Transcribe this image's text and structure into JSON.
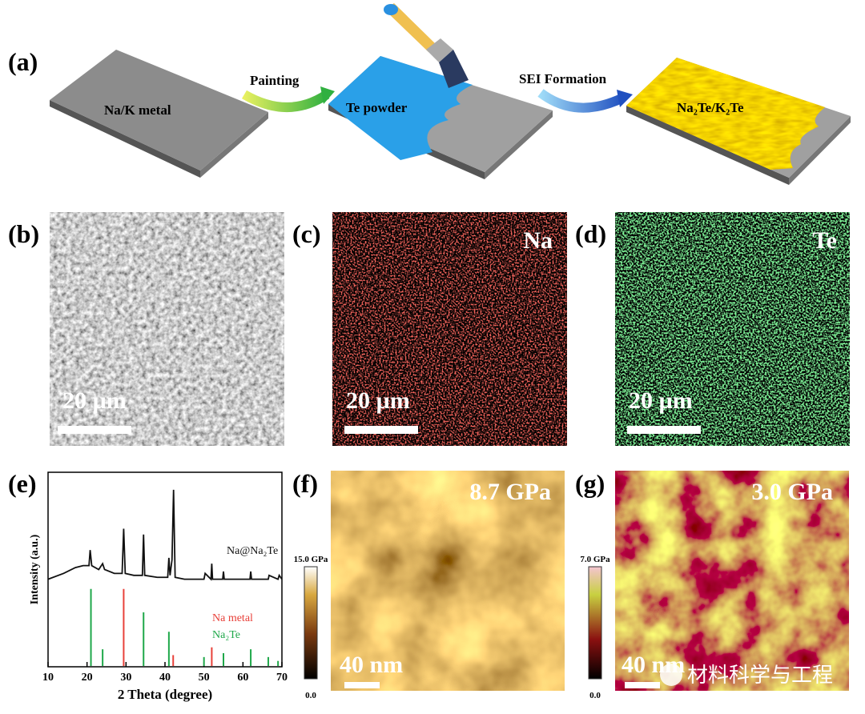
{
  "panel_labels": [
    "(a)",
    "(b)",
    "(c)",
    "(d)",
    "(e)",
    "(f)",
    "(g)"
  ],
  "a": {
    "substrate": "Na/K metal",
    "step1": "Painting",
    "coating": "Te powder",
    "step2": "SEI  Formation",
    "product": "Na₂Te/K₂Te"
  },
  "b": {
    "scale": "20 µm"
  },
  "c": {
    "element": "Na",
    "scale": "20 µm"
  },
  "d": {
    "element": "Te",
    "scale": "20 µm"
  },
  "e": {
    "chart_data": {
      "type": "line",
      "xlabel": "2 Theta (degree)",
      "ylabel": "Intensity (a.u.)",
      "xlim": [
        10,
        70
      ],
      "xticks": [
        10,
        20,
        30,
        40,
        50,
        60,
        70
      ],
      "ylim": [
        0,
        100
      ],
      "series": [
        {
          "name": "Na@Na₂Te",
          "color": "#111111",
          "type": "line",
          "x": [
            10,
            14,
            17,
            19,
            20.5,
            20.8,
            21.2,
            23,
            24,
            24.5,
            27,
            29,
            29.4,
            29.8,
            32,
            34.2,
            34.5,
            34.8,
            38,
            40.7,
            41,
            41.3,
            41.8,
            42.2,
            42.6,
            45,
            50,
            50.3,
            51.8,
            52,
            52.2,
            54.8,
            55,
            55.2,
            58,
            61.8,
            62,
            62.2,
            66.5,
            66.7,
            69,
            69.3,
            70
          ],
          "values": [
            45,
            48,
            51,
            52,
            52,
            60,
            52,
            50,
            53,
            50,
            48,
            48,
            71,
            48,
            47,
            47,
            68,
            47,
            46,
            46,
            56,
            47,
            55,
            91,
            46,
            45,
            45,
            48,
            45,
            53,
            45,
            45,
            49,
            45,
            45,
            45,
            49,
            45,
            45,
            47,
            45,
            47,
            45
          ]
        },
        {
          "name": "Na metal",
          "color": "#e8413a",
          "type": "stem",
          "x": [
            29.4,
            42.1,
            52
          ],
          "values": [
            40,
            6,
            10
          ]
        },
        {
          "name": "Na₂Te",
          "color": "#1fa84a",
          "type": "stem",
          "x": [
            21,
            24,
            34.5,
            41,
            50,
            55,
            62,
            66.5,
            69
          ],
          "values": [
            40,
            9,
            28,
            18,
            5,
            7,
            9,
            5,
            3
          ]
        }
      ]
    }
  },
  "f": {
    "modulus": "8.7 GPa",
    "scale": "40 nm",
    "colorbar_max": "15.0 GPa",
    "colorbar_min": "0.0"
  },
  "g": {
    "modulus": "3.0 GPa",
    "scale": "40 nm",
    "colorbar_max": "7.0 GPa",
    "colorbar_min": "0.0"
  },
  "watermark": "材料科学与工程"
}
